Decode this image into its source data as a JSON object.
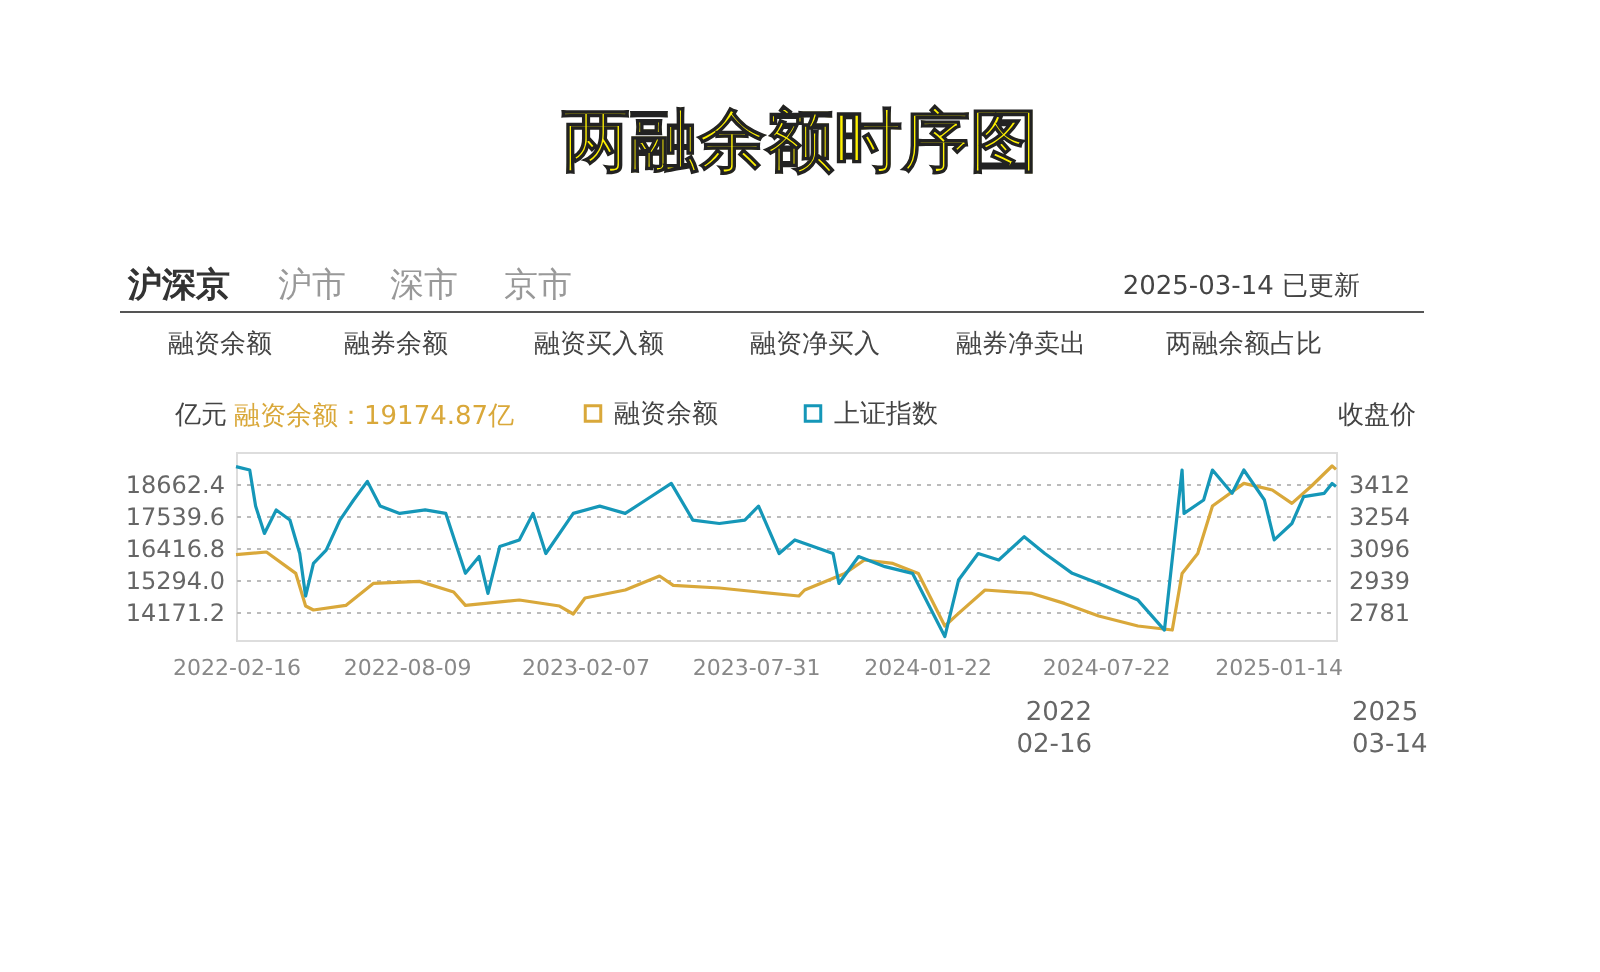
{
  "chart_data": {
    "type": "line",
    "title": "两融余额时序图",
    "annotations": [
      "沪深京",
      "沪市",
      "深市",
      "京市",
      "2025-03-14 已更新",
      "融资余额",
      "融券余额",
      "融资买入额",
      "融资净买入",
      "融券净卖出",
      "两融余额占比",
      "融资余额：19174.87亿",
      "2022\n02-16",
      "2025\n03-14"
    ],
    "ylabel": "亿元",
    "y2label": "收盘价",
    "xlim": [
      "2022-02-16",
      "2025-03-14"
    ],
    "xticks": [
      "2022-02-16",
      "2022-08-09",
      "2023-02-07",
      "2023-07-31",
      "2024-01-22",
      "2024-07-22",
      "2025-01-14"
    ],
    "ylim": [
      13188.8,
      19785.2
    ],
    "yticks": [
      14171.2,
      {
        "value": 15294,
        "label": "15294.0"
      },
      16416.8,
      17539.6,
      18662.4
    ],
    "y2lim": [
      2642,
      3570
    ],
    "y2ticks": [
      2781,
      2939,
      3096,
      3254,
      3412
    ],
    "grid": "y",
    "legend": "top",
    "line_style": "solid",
    "marker": "none",
    "series": [
      {
        "name": "融资余额",
        "color": "#d9a83a",
        "axis": "y",
        "x": [
          "2022-02-16",
          "2022-03-19",
          "2022-04-18",
          "2022-04-28",
          "2022-05-06",
          "2022-06-08",
          "2022-07-06",
          "2022-08-22",
          "2022-09-26",
          "2022-10-08",
          "2022-12-02",
          "2023-01-12",
          "2023-01-26",
          "2023-02-07",
          "2023-03-20",
          "2023-04-24",
          "2023-05-08",
          "2023-06-24",
          "2023-08-03",
          "2023-09-13",
          "2023-09-19",
          "2023-10-30",
          "2023-11-19",
          "2023-12-18",
          "2024-01-13",
          "2024-02-09",
          "2024-02-23",
          "2024-03-21",
          "2024-05-08",
          "2024-06-10",
          "2024-07-15",
          "2024-08-24",
          "2024-09-28",
          "2024-10-08",
          "2024-10-24",
          "2024-11-08",
          "2024-12-10",
          "2025-01-08",
          "2025-01-28",
          "2025-02-17",
          "2025-03-10",
          "2025-03-14"
        ],
        "values": [
          16185,
          16276,
          15525,
          14381,
          14241,
          14402,
          15175,
          15245,
          14873,
          14402,
          14592,
          14381,
          14101,
          14662,
          14943,
          15434,
          15104,
          15013,
          14873,
          14732,
          14943,
          15525,
          15995,
          15876,
          15525,
          13680,
          14122,
          14943,
          14823,
          14473,
          14030,
          13680,
          13539,
          15525,
          16227,
          17890,
          18683,
          18452,
          17982,
          18592,
          19294,
          19175
        ]
      },
      {
        "name": "上证指数",
        "color": "#1597b8",
        "axis": "y2",
        "x": [
          "2022-02-16",
          "2022-03-02",
          "2022-03-08",
          "2022-03-17",
          "2022-03-29",
          "2022-04-12",
          "2022-04-22",
          "2022-04-28",
          "2022-05-06",
          "2022-05-19",
          "2022-06-02",
          "2022-06-16",
          "2022-06-30",
          "2022-07-13",
          "2022-08-02",
          "2022-08-28",
          "2022-09-18",
          "2022-10-08",
          "2022-10-22",
          "2022-10-31",
          "2022-11-12",
          "2022-12-02",
          "2022-12-16",
          "2022-12-29",
          "2023-01-26",
          "2023-02-22",
          "2023-03-20",
          "2023-04-10",
          "2023-05-06",
          "2023-05-28",
          "2023-06-24",
          "2023-07-20",
          "2023-08-03",
          "2023-08-24",
          "2023-09-09",
          "2023-10-18",
          "2023-10-24",
          "2023-11-13",
          "2023-12-10",
          "2024-01-07",
          "2024-01-28",
          "2024-02-09",
          "2024-02-23",
          "2024-03-14",
          "2024-04-04",
          "2024-04-30",
          "2024-05-21",
          "2024-06-18",
          "2024-07-15",
          "2024-08-24",
          "2024-09-20",
          "2024-10-08",
          "2024-10-10",
          "2024-10-30",
          "2024-11-08",
          "2024-11-28",
          "2024-12-10",
          "2024-12-31",
          "2025-01-10",
          "2025-01-28",
          "2025-02-09",
          "2025-03-02",
          "2025-03-10",
          "2025-03-14"
        ],
        "values": [
          3498,
          3481,
          3303,
          3168,
          3284,
          3234,
          3069,
          2859,
          3020,
          3086,
          3234,
          3333,
          3425,
          3303,
          3267,
          3284,
          3267,
          2971,
          3054,
          2872,
          3103,
          3136,
          3267,
          3069,
          3267,
          3303,
          3267,
          3333,
          3415,
          3234,
          3217,
          3234,
          3303,
          3069,
          3136,
          3069,
          2921,
          3054,
          3004,
          2971,
          2773,
          2659,
          2938,
          3069,
          3037,
          3152,
          3069,
          2971,
          2921,
          2839,
          2691,
          3481,
          3267,
          3333,
          3481,
          3366,
          3481,
          3333,
          3136,
          3217,
          3350,
          3366,
          3415,
          3400
        ]
      }
    ]
  }
}
